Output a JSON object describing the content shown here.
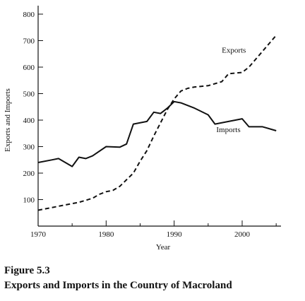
{
  "chart_data": {
    "type": "line",
    "xlabel": "Year",
    "ylabel": "Exports and Imports",
    "xlim": [
      1970,
      2005
    ],
    "ylim": [
      0,
      800
    ],
    "x_ticks": [
      "1970",
      "1980",
      "1990",
      "2000"
    ],
    "y_ticks": [
      "100",
      "200",
      "300",
      "400",
      "500",
      "600",
      "700",
      "800"
    ],
    "grid": false,
    "legend": "inline labels",
    "series": [
      {
        "name": "Imports",
        "style": "solid",
        "color": "#111111",
        "x": [
          1970,
          1972,
          1973,
          1975,
          1976,
          1977,
          1978,
          1980,
          1982,
          1983,
          1984,
          1986,
          1987,
          1988,
          1989,
          1990,
          1991,
          1993,
          1995,
          1996,
          1998,
          2000,
          2001,
          2003,
          2005
        ],
        "values": [
          240,
          250,
          255,
          225,
          260,
          255,
          265,
          300,
          298,
          310,
          385,
          395,
          430,
          425,
          445,
          470,
          465,
          445,
          420,
          385,
          395,
          405,
          375,
          375,
          360
        ]
      },
      {
        "name": "Exports",
        "style": "dashed",
        "color": "#111111",
        "x": [
          1970,
          1972,
          1974,
          1976,
          1978,
          1979,
          1980,
          1981,
          1982,
          1983,
          1984,
          1985,
          1986,
          1987,
          1988,
          1989,
          1990,
          1991,
          1992,
          1993,
          1995,
          1997,
          1998,
          2000,
          2001,
          2003,
          2005
        ],
        "values": [
          60,
          70,
          80,
          90,
          105,
          120,
          130,
          135,
          150,
          175,
          200,
          245,
          285,
          340,
          390,
          440,
          480,
          510,
          520,
          525,
          530,
          545,
          575,
          580,
          600,
          660,
          720
        ]
      }
    ]
  },
  "figure": {
    "number": "Figure 5.3",
    "title": "Exports and Imports in the Country of Macroland"
  }
}
